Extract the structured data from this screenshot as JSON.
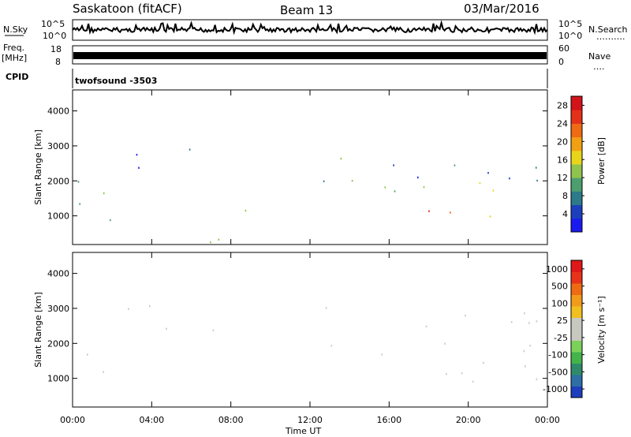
{
  "header": {
    "station": "Saskatoon (fitACF)",
    "beam": "Beam 13",
    "date": "03/Mar/2016"
  },
  "nsky_panel": {
    "left_label": "N.Sky",
    "right_label": "N.Search",
    "right_dots": "……….",
    "y_ticks_left": [
      "10^5",
      "10^0"
    ],
    "y_ticks_right": [
      "10^5",
      "10^0"
    ]
  },
  "freq_panel": {
    "label_line1": "Freq.",
    "label_line2": "[MHz]",
    "y_ticks_left": [
      "18",
      "8"
    ],
    "right_label": "Nave",
    "right_dots": "….",
    "y_ticks_right": [
      "60",
      "0"
    ]
  },
  "cpid_panel": {
    "label": "CPID",
    "program": "twofsound  -3503"
  },
  "power_panel": {
    "ylabel": "Slant Range [km]",
    "y_ticks": [
      "1000",
      "2000",
      "3000",
      "4000"
    ],
    "colorbar_label": "Power [dB]",
    "colorbar_ticks": [
      "4",
      "8",
      "12",
      "16",
      "20",
      "24",
      "28"
    ],
    "colorbar_colors": [
      "#1a1af0",
      "#1d3fbd",
      "#2c7a8a",
      "#4d9e6e",
      "#8fc34e",
      "#e8d51b",
      "#f2a013",
      "#ee6a13",
      "#e3311a",
      "#d2141a"
    ]
  },
  "velocity_panel": {
    "ylabel": "Slant Range [km]",
    "y_ticks": [
      "1000",
      "2000",
      "3000",
      "4000"
    ],
    "colorbar_label": "Velocity [m s⁻¹]",
    "colorbar_ticks": [
      "1000",
      "500",
      "100",
      "25",
      "-25",
      "-100",
      "-500",
      "-1000"
    ],
    "colorbar_colors": [
      "#1d3fbd",
      "#2e6fa6",
      "#2f8a6a",
      "#44b34a",
      "#7bd25a",
      "#c8c8c0",
      "#c8c8c0",
      "#f0c020",
      "#f29a1a",
      "#ee6a13",
      "#e8331a",
      "#e01818"
    ]
  },
  "x_axis": {
    "label": "Time UT",
    "ticks": [
      "00:00",
      "04:00",
      "08:00",
      "12:00",
      "16:00",
      "20:00",
      "00:00"
    ]
  },
  "chart_data": {
    "type": "heatmap",
    "title": "Saskatoon (fitACF) Beam 13 03/Mar/2016",
    "xlabel": "Time UT",
    "x_range_hours": [
      0,
      24
    ],
    "ylim_km": [
      180,
      4600
    ],
    "panels": [
      {
        "name": "Power",
        "units": "dB",
        "colorbar_range": [
          0,
          30
        ],
        "scatter_regions": [
          {
            "t_start": 0.0,
            "t_end": 2.8,
            "r_min": 900,
            "r_max": 2400,
            "level": 12
          },
          {
            "t_start": 0.2,
            "t_end": 1.5,
            "r_min": 950,
            "r_max": 1250,
            "level": 22
          },
          {
            "t_start": 2.0,
            "t_end": 6.5,
            "r_min": 2300,
            "r_max": 3100,
            "level": 6
          },
          {
            "t_start": 5.0,
            "t_end": 7.5,
            "r_min": 2800,
            "r_max": 3100,
            "level": 6
          },
          {
            "t_start": 8.5,
            "t_end": 9.5,
            "r_min": 1000,
            "r_max": 2200,
            "level": 10
          },
          {
            "t_start": 10.5,
            "t_end": 13.0,
            "r_min": 2900,
            "r_max": 3300,
            "level": 7
          },
          {
            "t_start": 12.5,
            "t_end": 15.0,
            "r_min": 1300,
            "r_max": 3000,
            "level": 11
          },
          {
            "t_start": 14.5,
            "t_end": 24.0,
            "r_min": 900,
            "r_max": 2000,
            "level": 14
          },
          {
            "t_start": 15.5,
            "t_end": 24.0,
            "r_min": 950,
            "r_max": 1250,
            "level": 26
          },
          {
            "t_start": 16.0,
            "t_end": 24.0,
            "r_min": 2000,
            "r_max": 3000,
            "level": 6
          },
          {
            "t_start": 3.0,
            "t_end": 11.0,
            "r_min": 200,
            "r_max": 500,
            "level": 14
          },
          {
            "t_start": 15.5,
            "t_end": 17.0,
            "r_min": 350,
            "r_max": 500,
            "level": 20
          }
        ]
      },
      {
        "name": "Velocity",
        "units": "m s^-1",
        "colorbar_range": [
          -1000,
          1000
        ],
        "scatter_regions": [
          {
            "t_start": 0.0,
            "t_end": 2.8,
            "r_min": 900,
            "r_max": 2200,
            "level": 0
          },
          {
            "t_start": 1.2,
            "t_end": 2.8,
            "r_min": 850,
            "r_max": 1400,
            "level": 400
          },
          {
            "t_start": 2.5,
            "t_end": 7.5,
            "r_min": 2300,
            "r_max": 3100,
            "level": 0
          },
          {
            "t_start": 8.8,
            "t_end": 9.3,
            "r_min": 1500,
            "r_max": 2100,
            "level": -400
          },
          {
            "t_start": 10.5,
            "t_end": 13.0,
            "r_min": 2900,
            "r_max": 3300,
            "level": 0
          },
          {
            "t_start": 12.5,
            "t_end": 15.0,
            "r_min": 1400,
            "r_max": 3000,
            "level": 0
          },
          {
            "t_start": 14.5,
            "t_end": 24.0,
            "r_min": 900,
            "r_max": 2000,
            "level": 0
          },
          {
            "t_start": 16.0,
            "t_end": 24.0,
            "r_min": 2000,
            "r_max": 3000,
            "level": 0
          },
          {
            "t_start": 5.5,
            "t_end": 6.5,
            "r_min": 200,
            "r_max": 400,
            "level": 400
          },
          {
            "t_start": 10.0,
            "t_end": 11.5,
            "r_min": 250,
            "r_max": 500,
            "level": -200
          },
          {
            "t_start": 15.5,
            "t_end": 17.0,
            "r_min": 250,
            "r_max": 400,
            "level": -200
          }
        ]
      }
    ],
    "nsky_log_range": [
      0,
      5
    ],
    "freq_range_mhz": [
      8,
      18
    ],
    "freq_value_mhz": 10.5
  }
}
